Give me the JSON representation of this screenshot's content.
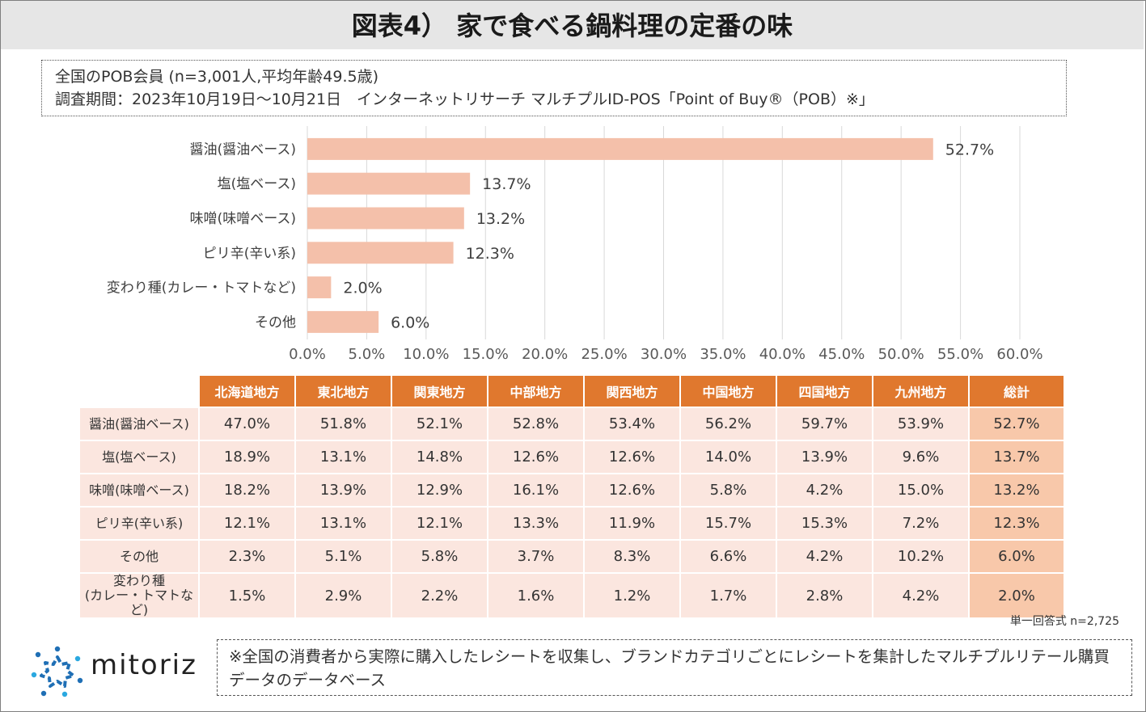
{
  "title": "図表4） 家で食べる鍋料理の定番の味",
  "info": {
    "line1": "全国のPOB会員 (n=3,001人,平均年齢49.5歳)",
    "line2": "調査期間：2023年10月19日～10月21日　インターネットリサーチ マルチプルID-POS「Point of Buy®（POB）※」"
  },
  "colors": {
    "bar": "#f4c0aa",
    "header": "#e0782e",
    "cell": "#fbe6df",
    "total_cell": "#f8c8aa",
    "grid": "#d9d9d9"
  },
  "chart_data": {
    "type": "bar",
    "orientation": "horizontal",
    "categories": [
      "醤油(醤油ベース)",
      "塩(塩ベース)",
      "味噌(味噌ベース)",
      "ピリ辛(辛い系)",
      "変わり種(カレー・トマトなど)",
      "その他"
    ],
    "values": [
      52.7,
      13.7,
      13.2,
      12.3,
      2.0,
      6.0
    ],
    "value_labels": [
      "52.7%",
      "13.7%",
      "13.2%",
      "12.3%",
      "2.0%",
      "6.0%"
    ],
    "xlim": [
      0,
      60
    ],
    "x_ticks": [
      "0.0%",
      "5.0%",
      "10.0%",
      "15.0%",
      "20.0%",
      "25.0%",
      "30.0%",
      "35.0%",
      "40.0%",
      "45.0%",
      "50.0%",
      "55.0%",
      "60.0%"
    ],
    "grid": true
  },
  "table": {
    "headers": [
      "北海道地方",
      "東北地方",
      "関東地方",
      "中部地方",
      "関西地方",
      "中国地方",
      "四国地方",
      "九州地方",
      "総計"
    ],
    "rows": [
      {
        "label": "醤油(醤油ベース)",
        "values": [
          "47.0%",
          "51.8%",
          "52.1%",
          "52.8%",
          "53.4%",
          "56.2%",
          "59.7%",
          "53.9%",
          "52.7%"
        ]
      },
      {
        "label": "塩(塩ベース)",
        "values": [
          "18.9%",
          "13.1%",
          "14.8%",
          "12.6%",
          "12.6%",
          "14.0%",
          "13.9%",
          "9.6%",
          "13.7%"
        ]
      },
      {
        "label": "味噌(味噌ベース)",
        "values": [
          "18.2%",
          "13.9%",
          "12.9%",
          "16.1%",
          "12.6%",
          "5.8%",
          "4.2%",
          "15.0%",
          "13.2%"
        ]
      },
      {
        "label": "ピリ辛(辛い系)",
        "values": [
          "12.1%",
          "13.1%",
          "12.1%",
          "13.3%",
          "11.9%",
          "15.7%",
          "15.3%",
          "7.2%",
          "12.3%"
        ]
      },
      {
        "label": "その他",
        "values": [
          "2.3%",
          "5.1%",
          "5.8%",
          "3.7%",
          "8.3%",
          "6.6%",
          "4.2%",
          "10.2%",
          "6.0%"
        ]
      },
      {
        "label_line1": "変わり種",
        "label_line2": "(カレー・トマトなど)",
        "values": [
          "1.5%",
          "2.9%",
          "2.2%",
          "1.6%",
          "1.2%",
          "1.7%",
          "2.8%",
          "4.2%",
          "2.0%"
        ]
      }
    ]
  },
  "sample_note": "単一回答式 n=2,725",
  "logo": {
    "text": "mitoriz",
    "icon": "mitoriz-logo-icon"
  },
  "footnote": "※全国の消費者から実際に購入したレシートを収集し、ブランドカテゴリごとにレシートを集計したマルチプルリテール購買データのデータベース"
}
